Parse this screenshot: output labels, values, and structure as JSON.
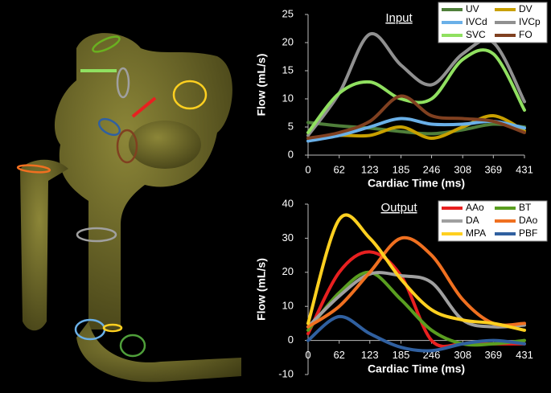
{
  "chart_data": [
    {
      "type": "line",
      "title": "Input",
      "xlabel": "Cardiac Time (ms)",
      "ylabel": "Flow (mL/s)",
      "x": [
        0,
        62,
        123,
        185,
        246,
        308,
        369,
        431
      ],
      "xlim": [
        0,
        431
      ],
      "xticks": [
        0,
        62,
        123,
        185,
        246,
        308,
        369,
        431
      ],
      "ylim": [
        0,
        25
      ],
      "yticks": [
        0,
        5,
        10,
        15,
        20,
        25
      ],
      "series": [
        {
          "name": "UV",
          "color": "#4f7f3a",
          "values": [
            5.8,
            5.2,
            4.8,
            4.2,
            3.8,
            4.5,
            5.5,
            5.0
          ]
        },
        {
          "name": "DV",
          "color": "#c8a000",
          "values": [
            3,
            3.5,
            3.5,
            5,
            3,
            5,
            7,
            4.3
          ]
        },
        {
          "name": "IVCd",
          "color": "#6ab0e8",
          "values": [
            2.5,
            3.5,
            5,
            6.5,
            5.5,
            5.5,
            6,
            4.8
          ]
        },
        {
          "name": "IVCp",
          "color": "#909090",
          "values": [
            3.5,
            11,
            21.5,
            16,
            12.5,
            18,
            20,
            9.5
          ]
        },
        {
          "name": "SVC",
          "color": "#90e060",
          "values": [
            4,
            11,
            13,
            10,
            10,
            17,
            18,
            8
          ]
        },
        {
          "name": "FO",
          "color": "#804020",
          "values": [
            3,
            4,
            6,
            10.5,
            7,
            6.5,
            6,
            4
          ]
        }
      ]
    },
    {
      "type": "line",
      "title": "Output",
      "xlabel": "Cardiac Time (ms)",
      "ylabel": "Flow (mL/s)",
      "x": [
        0,
        62,
        123,
        185,
        246,
        308,
        369,
        431
      ],
      "xlim": [
        0,
        431
      ],
      "xticks": [
        0,
        62,
        123,
        185,
        246,
        308,
        369,
        431
      ],
      "ylim": [
        -10,
        40
      ],
      "yticks": [
        -10,
        0,
        10,
        20,
        30,
        40
      ],
      "series": [
        {
          "name": "AAo",
          "color": "#e82020",
          "values": [
            2,
            20,
            26,
            19,
            0,
            -1,
            -1,
            -1
          ]
        },
        {
          "name": "BT",
          "color": "#5a9e20",
          "values": [
            3,
            14,
            20,
            12,
            3,
            -1,
            -1,
            0
          ]
        },
        {
          "name": "DA",
          "color": "#a0a0a0",
          "values": [
            4,
            13,
            19.5,
            19,
            17,
            6,
            4,
            4.5
          ]
        },
        {
          "name": "DAo",
          "color": "#f07020",
          "values": [
            4,
            10,
            20,
            30,
            25,
            12,
            5,
            5
          ]
        },
        {
          "name": "MPA",
          "color": "#ffd020",
          "values": [
            5,
            35.5,
            30,
            18,
            9,
            6,
            5,
            3
          ]
        },
        {
          "name": "PBF",
          "color": "#3060a0",
          "values": [
            0,
            7,
            2,
            -2,
            -3,
            -1,
            0,
            -1
          ]
        }
      ]
    }
  ]
}
